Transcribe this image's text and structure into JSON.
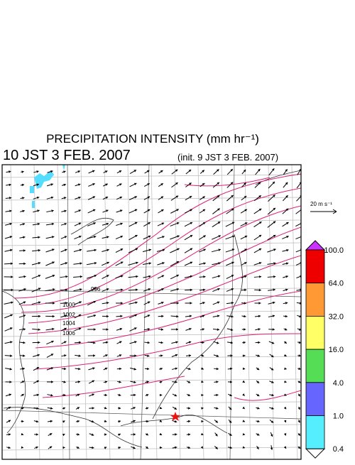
{
  "header": {
    "title": "PRECIPITATION INTENSITY (mm hr⁻¹)",
    "valid_time": "10 JST 3 FEB. 2007",
    "init_time": "(init. 9 JST 3 FEB. 2007)"
  },
  "scale": {
    "label": "20 m s⁻¹"
  },
  "colorbar": {
    "labels": [
      "100.0",
      "64.0",
      "32.0",
      "16.0",
      "4.0",
      "1.0",
      "0.4"
    ],
    "colors": [
      "#ee0000",
      "#ff9933",
      "#ffff66",
      "#55dd55",
      "#6666ff",
      "#55eeff"
    ],
    "over_color": "#cc33ff",
    "under_color": "#ffffff"
  },
  "isobar_labels": [
    "996",
    "1000",
    "1002",
    "1004",
    "1006"
  ]
}
